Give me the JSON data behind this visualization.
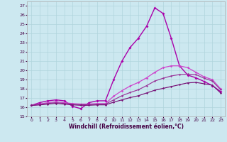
{
  "xlabel": "Windchill (Refroidissement éolien,°C)",
  "xlim": [
    -0.5,
    23.5
  ],
  "ylim": [
    15,
    27.5
  ],
  "yticks": [
    15,
    16,
    17,
    18,
    19,
    20,
    21,
    22,
    23,
    24,
    25,
    26,
    27
  ],
  "xticks": [
    0,
    1,
    2,
    3,
    4,
    5,
    6,
    7,
    8,
    9,
    10,
    11,
    12,
    13,
    14,
    15,
    16,
    17,
    18,
    19,
    20,
    21,
    22,
    23
  ],
  "bg_color": "#cce8f0",
  "grid_color": "#b0d4dc",
  "lines": [
    {
      "x": [
        0,
        1,
        2,
        3,
        4,
        5,
        6,
        7,
        8,
        9,
        10,
        11,
        12,
        13,
        14,
        15,
        16,
        17,
        18,
        19,
        20,
        21,
        22,
        23
      ],
      "y": [
        16.2,
        16.5,
        16.7,
        16.8,
        16.7,
        16.1,
        15.85,
        16.5,
        16.7,
        16.7,
        19.0,
        21.0,
        22.5,
        23.5,
        24.8,
        26.8,
        26.2,
        23.5,
        20.5,
        19.5,
        19.2,
        18.8,
        18.35,
        17.7
      ],
      "color": "#aa00aa",
      "marker": "D",
      "ms": 2.0,
      "lw": 1.0
    },
    {
      "x": [
        0,
        1,
        2,
        3,
        4,
        5,
        6,
        7,
        8,
        9,
        10,
        11,
        12,
        13,
        14,
        15,
        16,
        17,
        18,
        19,
        20,
        21,
        22,
        23
      ],
      "y": [
        16.2,
        16.35,
        16.5,
        16.6,
        16.5,
        16.4,
        16.35,
        16.35,
        16.4,
        16.4,
        17.2,
        17.8,
        18.3,
        18.7,
        19.2,
        19.8,
        20.3,
        20.5,
        20.5,
        20.3,
        19.8,
        19.3,
        19.0,
        18.0
      ],
      "color": "#cc44cc",
      "marker": "D",
      "ms": 1.8,
      "lw": 0.9
    },
    {
      "x": [
        0,
        1,
        2,
        3,
        4,
        5,
        6,
        7,
        8,
        9,
        10,
        11,
        12,
        13,
        14,
        15,
        16,
        17,
        18,
        19,
        20,
        21,
        22,
        23
      ],
      "y": [
        16.2,
        16.3,
        16.42,
        16.5,
        16.42,
        16.33,
        16.28,
        16.28,
        16.33,
        16.33,
        16.8,
        17.25,
        17.6,
        17.9,
        18.35,
        18.85,
        19.15,
        19.4,
        19.55,
        19.6,
        19.55,
        19.15,
        18.85,
        17.9
      ],
      "color": "#993399",
      "marker": "D",
      "ms": 1.6,
      "lw": 0.85
    },
    {
      "x": [
        0,
        1,
        2,
        3,
        4,
        5,
        6,
        7,
        8,
        9,
        10,
        11,
        12,
        13,
        14,
        15,
        16,
        17,
        18,
        19,
        20,
        21,
        22,
        23
      ],
      "y": [
        16.2,
        16.25,
        16.34,
        16.42,
        16.34,
        16.26,
        16.21,
        16.21,
        16.26,
        16.26,
        16.55,
        16.8,
        17.05,
        17.25,
        17.55,
        17.85,
        18.05,
        18.25,
        18.45,
        18.65,
        18.7,
        18.55,
        18.4,
        17.55
      ],
      "color": "#771177",
      "marker": "D",
      "ms": 1.6,
      "lw": 0.85
    }
  ]
}
